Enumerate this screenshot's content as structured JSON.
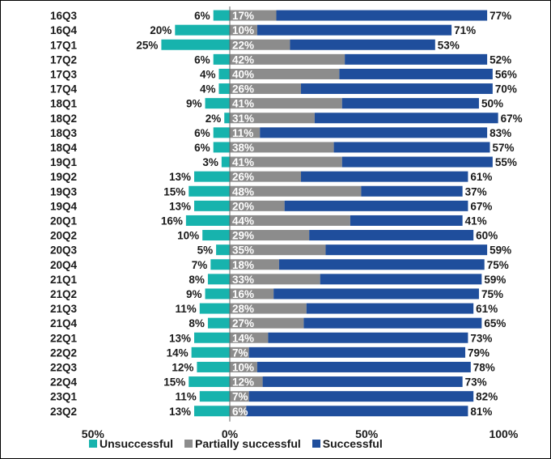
{
  "chart_data": {
    "type": "bar",
    "orientation": "horizontal",
    "stacked": true,
    "diverging": true,
    "categories": [
      "16Q3",
      "16Q4",
      "17Q1",
      "17Q2",
      "17Q3",
      "17Q4",
      "18Q1",
      "18Q2",
      "18Q3",
      "18Q4",
      "19Q1",
      "19Q2",
      "19Q3",
      "19Q4",
      "20Q1",
      "20Q2",
      "20Q3",
      "20Q4",
      "21Q1",
      "21Q2",
      "21Q3",
      "21Q4",
      "22Q1",
      "22Q2",
      "22Q3",
      "22Q4",
      "23Q1",
      "23Q2"
    ],
    "series": [
      {
        "name": "Unsuccessful",
        "color": "#17b3ad",
        "direction": "negative",
        "values": [
          6,
          20,
          25,
          6,
          4,
          4,
          9,
          2,
          6,
          6,
          3,
          13,
          15,
          13,
          16,
          10,
          5,
          7,
          8,
          9,
          11,
          8,
          13,
          14,
          12,
          15,
          11,
          13
        ]
      },
      {
        "name": "Partially successful",
        "color": "#8c8c8c",
        "direction": "positive",
        "values": [
          17,
          10,
          22,
          42,
          40,
          26,
          41,
          31,
          11,
          38,
          41,
          26,
          48,
          20,
          44,
          29,
          35,
          18,
          33,
          16,
          28,
          27,
          14,
          7,
          10,
          12,
          7,
          6
        ]
      },
      {
        "name": "Successful",
        "color": "#1f4e9c",
        "direction": "positive",
        "values": [
          77,
          71,
          53,
          52,
          56,
          70,
          50,
          67,
          83,
          57,
          55,
          61,
          37,
          67,
          41,
          60,
          59,
          75,
          59,
          75,
          61,
          65,
          73,
          79,
          78,
          73,
          82,
          81
        ]
      }
    ],
    "x_ticks": [
      "50%",
      "0%",
      "50%",
      "100%"
    ],
    "x_tick_values": [
      -50,
      0,
      50,
      100
    ],
    "xlim": [
      -50,
      100
    ],
    "value_suffix": "%",
    "legend_position": "bottom"
  },
  "legend": {
    "items": [
      {
        "label": "Unsuccessful",
        "color": "#17b3ad"
      },
      {
        "label": "Partially successful",
        "color": "#8c8c8c"
      },
      {
        "label": "Successful",
        "color": "#1f4e9c"
      }
    ]
  }
}
